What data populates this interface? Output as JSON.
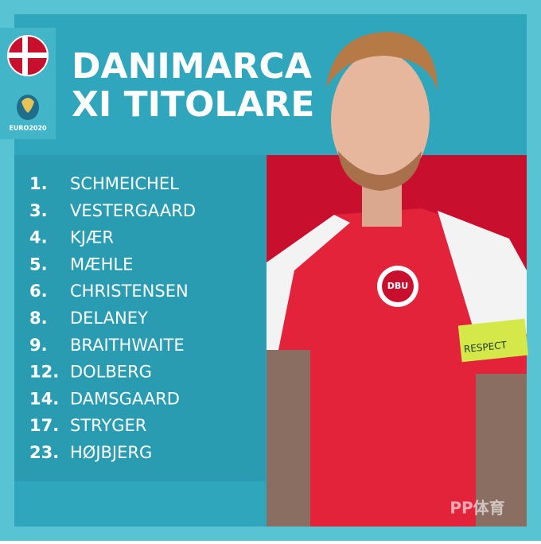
{
  "header": {
    "title_lines": [
      "DANIMARCA",
      "XI TITOLARE"
    ],
    "logo_text": "EURO2020"
  },
  "lineup": [
    {
      "number": "1.",
      "name": "SCHMEICHEL"
    },
    {
      "number": "3.",
      "name": "VESTERGAARD"
    },
    {
      "number": "4.",
      "name": "KJÆR"
    },
    {
      "number": "5.",
      "name": "MÆHLE"
    },
    {
      "number": "6.",
      "name": "CHRISTENSEN"
    },
    {
      "number": "8.",
      "name": "DELANEY"
    },
    {
      "number": "9.",
      "name": "BRAITHWAITE"
    },
    {
      "number": "12.",
      "name": "DOLBERG"
    },
    {
      "number": "14.",
      "name": "DAMSGAARD"
    },
    {
      "number": "17.",
      "name": "STRYGER"
    },
    {
      "number": "23.",
      "name": "HØJBJERG"
    }
  ],
  "photo": {
    "armband_text": "RESPECT",
    "badge_text": "DBU"
  },
  "watermark": "PP体育"
}
